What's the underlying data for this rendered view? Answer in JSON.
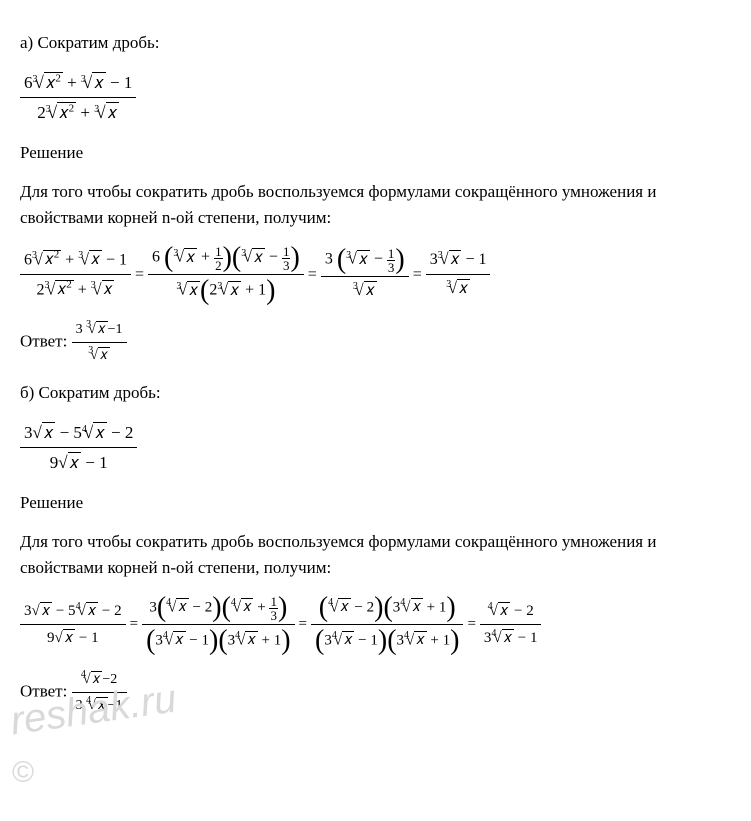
{
  "a": {
    "heading": "а) Сократим дробь:",
    "problem": {
      "num": "6∛(x²) + ∛x − 1",
      "den": "2∛(x²) + ∛x"
    },
    "solution_label": "Решение",
    "explanation": "Для того чтобы сократить дробь воспользуемся формулами сокращённого умножения и свойствами корней n-ой степени, получим:",
    "answer_label": "Ответ:"
  },
  "b": {
    "heading": "б) Сократим дробь:",
    "problem": {
      "num": "3√x − 5⁴√x − 2",
      "den": "9√x − 1"
    },
    "solution_label": "Решение",
    "explanation": "Для того чтобы сократить дробь воспользуемся формулами сокращённого умножения и свойствами корней n-ой степени, получим:",
    "answer_label": "Ответ:"
  },
  "colors": {
    "text": "#000000",
    "bg": "#ffffff",
    "watermark": "#d9d9d9"
  },
  "watermark": "reshak.ru",
  "copyright": "©"
}
